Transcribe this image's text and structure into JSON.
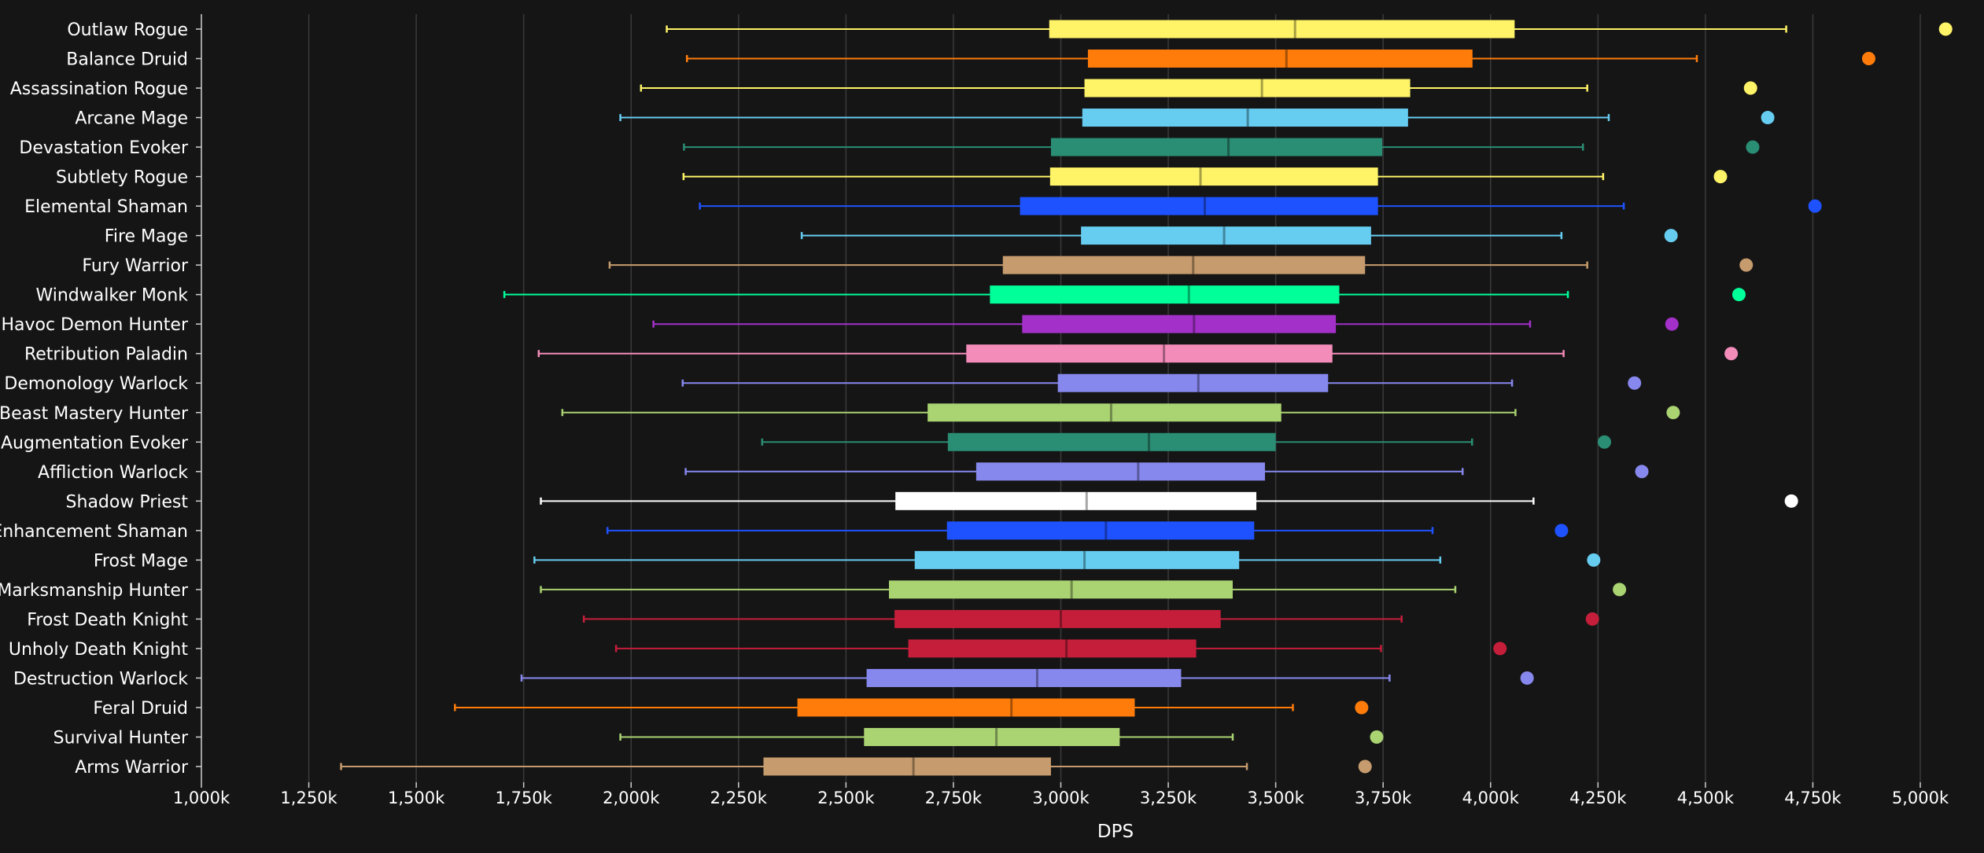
{
  "chart_data": {
    "type": "boxplot",
    "title": "",
    "xlabel": "DPS",
    "ylabel": "",
    "xlim": [
      1000000,
      5000000
    ],
    "xticks": [
      1000000,
      1250000,
      1500000,
      1750000,
      2000000,
      2250000,
      2500000,
      2750000,
      3000000,
      3250000,
      3500000,
      3750000,
      4000000,
      4250000,
      4500000,
      4750000,
      5000000
    ],
    "xtick_labels": [
      "1,000k",
      "1,250k",
      "1,500k",
      "1,750k",
      "2,000k",
      "2,250k",
      "2,500k",
      "2,750k",
      "3,000k",
      "3,250k",
      "3,500k",
      "3,750k",
      "4,000k",
      "4,250k",
      "4,500k",
      "4,750k",
      "5,000k"
    ],
    "grid": "vertical",
    "series": [
      {
        "name": "Outlaw Rogue",
        "color": "#FFF468",
        "min": 2083000,
        "q1": 2973000,
        "median": 3545000,
        "q3": 4056000,
        "max": 4688000,
        "outlier": 5059000
      },
      {
        "name": "Balance Druid",
        "color": "#FF7C0A",
        "min": 2130000,
        "q1": 3063000,
        "median": 3525000,
        "q3": 3958000,
        "max": 4480000,
        "outlier": 4880000
      },
      {
        "name": "Assassination Rogue",
        "color": "#FFF468",
        "min": 2023000,
        "q1": 3055000,
        "median": 3468000,
        "q3": 3813000,
        "max": 4225000,
        "outlier": 4605000
      },
      {
        "name": "Arcane Mage",
        "color": "#66CCF0",
        "min": 1975000,
        "q1": 3050000,
        "median": 3435000,
        "q3": 3808000,
        "max": 4275000,
        "outlier": 4645000
      },
      {
        "name": "Devastation Evoker",
        "color": "#2A8E74",
        "min": 2123000,
        "q1": 2977000,
        "median": 3390000,
        "q3": 3748000,
        "max": 4215000,
        "outlier": 4610000
      },
      {
        "name": "Subtlety Rogue",
        "color": "#FFF468",
        "min": 2122000,
        "q1": 2975000,
        "median": 3325000,
        "q3": 3738000,
        "max": 4262000,
        "outlier": 4535000
      },
      {
        "name": "Elemental Shaman",
        "color": "#1F52FF",
        "min": 2160000,
        "q1": 2905000,
        "median": 3335000,
        "q3": 3738000,
        "max": 4310000,
        "outlier": 4755000
      },
      {
        "name": "Fire Mage",
        "color": "#66CCF0",
        "min": 2397000,
        "q1": 3047000,
        "median": 3380000,
        "q3": 3722000,
        "max": 4165000,
        "outlier": 4420000
      },
      {
        "name": "Fury Warrior",
        "color": "#C69B6D",
        "min": 1950000,
        "q1": 2865000,
        "median": 3308000,
        "q3": 3708000,
        "max": 4225000,
        "outlier": 4595000
      },
      {
        "name": "Windwalker Monk",
        "color": "#00FF98",
        "min": 1705000,
        "q1": 2835000,
        "median": 3298000,
        "q3": 3648000,
        "max": 4180000,
        "outlier": 4578000
      },
      {
        "name": "Havoc Demon Hunter",
        "color": "#A330C9",
        "min": 2052000,
        "q1": 2910000,
        "median": 3310000,
        "q3": 3640000,
        "max": 4092000,
        "outlier": 4422000
      },
      {
        "name": "Retribution Paladin",
        "color": "#F48CBA",
        "min": 1785000,
        "q1": 2780000,
        "median": 3240000,
        "q3": 3632000,
        "max": 4170000,
        "outlier": 4560000
      },
      {
        "name": "Demonology Warlock",
        "color": "#8788EE",
        "min": 2120000,
        "q1": 2993000,
        "median": 3320000,
        "q3": 3622000,
        "max": 4050000,
        "outlier": 4335000
      },
      {
        "name": "Beast Mastery Hunter",
        "color": "#AAD372",
        "min": 1840000,
        "q1": 2690000,
        "median": 3117000,
        "q3": 3513000,
        "max": 4058000,
        "outlier": 4425000
      },
      {
        "name": "Augmentation Evoker",
        "color": "#2A8E74",
        "min": 2305000,
        "q1": 2737000,
        "median": 3205000,
        "q3": 3500000,
        "max": 3957000,
        "outlier": 4265000
      },
      {
        "name": "Affliction Warlock",
        "color": "#8788EE",
        "min": 2127000,
        "q1": 2803000,
        "median": 3180000,
        "q3": 3475000,
        "max": 3935000,
        "outlier": 4352000
      },
      {
        "name": "Shadow Priest",
        "color": "#FFFFFF",
        "min": 1790000,
        "q1": 2615000,
        "median": 3060000,
        "q3": 3455000,
        "max": 4100000,
        "outlier": 4700000
      },
      {
        "name": "Enhancement Shaman",
        "color": "#1F52FF",
        "min": 1945000,
        "q1": 2735000,
        "median": 3105000,
        "q3": 3450000,
        "max": 3865000,
        "outlier": 4165000
      },
      {
        "name": "Frost Mage",
        "color": "#66CCF0",
        "min": 1775000,
        "q1": 2660000,
        "median": 3055000,
        "q3": 3415000,
        "max": 3883000,
        "outlier": 4240000
      },
      {
        "name": "Marksmanship Hunter",
        "color": "#AAD372",
        "min": 1790000,
        "q1": 2600000,
        "median": 3025000,
        "q3": 3400000,
        "max": 3918000,
        "outlier": 4300000
      },
      {
        "name": "Frost Death Knight",
        "color": "#C41E3A",
        "min": 1890000,
        "q1": 2613000,
        "median": 3000000,
        "q3": 3372000,
        "max": 3793000,
        "outlier": 4237000
      },
      {
        "name": "Unholy Death Knight",
        "color": "#C41E3A",
        "min": 1965000,
        "q1": 2645000,
        "median": 3013000,
        "q3": 3315000,
        "max": 3745000,
        "outlier": 4022000
      },
      {
        "name": "Destruction Warlock",
        "color": "#8788EE",
        "min": 1745000,
        "q1": 2548000,
        "median": 2945000,
        "q3": 3280000,
        "max": 3765000,
        "outlier": 4085000
      },
      {
        "name": "Feral Druid",
        "color": "#FF7C0A",
        "min": 1590000,
        "q1": 2387000,
        "median": 2885000,
        "q3": 3172000,
        "max": 3540000,
        "outlier": 3700000
      },
      {
        "name": "Survival Hunter",
        "color": "#AAD372",
        "min": 1975000,
        "q1": 2542000,
        "median": 2850000,
        "q3": 3137000,
        "max": 3400000,
        "outlier": 3735000
      },
      {
        "name": "Arms Warrior",
        "color": "#C69B6D",
        "min": 1325000,
        "q1": 2308000,
        "median": 2657000,
        "q3": 2977000,
        "max": 3433000,
        "outlier": 3708000
      }
    ]
  }
}
